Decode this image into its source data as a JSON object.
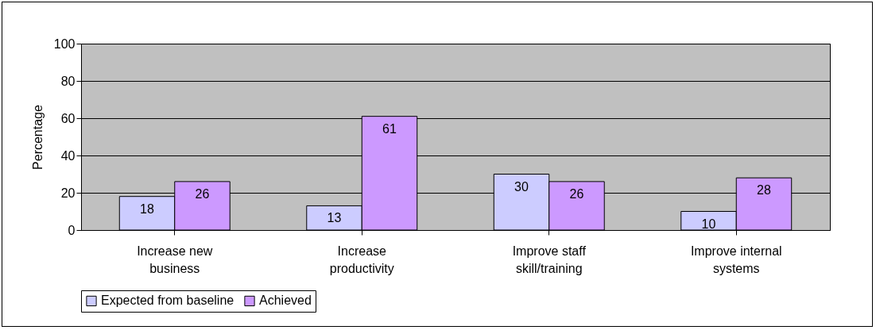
{
  "chart_data": {
    "type": "bar",
    "ylabel": "Percentage",
    "categories": [
      "Increase new business",
      "Increase productivity",
      "Improve staff skill/training",
      "Improve internal systems"
    ],
    "series": [
      {
        "name": "Expected from baseline",
        "color": "#ccccff",
        "values": [
          18,
          13,
          30,
          10
        ]
      },
      {
        "name": "Achieved",
        "color": "#cc99ff",
        "values": [
          26,
          61,
          26,
          28
        ]
      }
    ],
    "ylim": [
      0,
      100
    ],
    "yticks": [
      0,
      20,
      40,
      60,
      80,
      100
    ],
    "grid": "y",
    "legend": "bottom",
    "data_labels": true
  }
}
